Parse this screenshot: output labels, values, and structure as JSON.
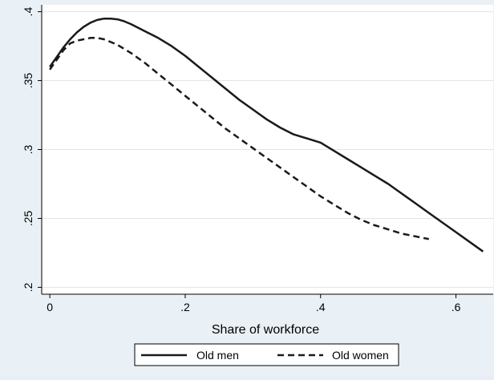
{
  "chart_data": {
    "type": "line",
    "title": "",
    "xlabel": "Share of workforce",
    "ylabel": "",
    "xlim": [
      -0.012,
      0.655
    ],
    "ylim": [
      0.195,
      0.405
    ],
    "xticks": [
      0,
      0.2,
      0.4,
      0.6
    ],
    "xtick_labels": [
      "0",
      ".2",
      ".4",
      ".6"
    ],
    "yticks": [
      0.2,
      0.25,
      0.3,
      0.35,
      0.4
    ],
    "ytick_labels": [
      ".2",
      ".25",
      ".3",
      ".35",
      ".4"
    ],
    "grid": "horizontal",
    "legend_position": "bottom",
    "colors": {
      "background": "#eaf1f6",
      "plot_background": "#ffffff",
      "line": "#1a1a1a"
    },
    "series": [
      {
        "name": "Old men",
        "style": "solid",
        "x": [
          0,
          0.01,
          0.02,
          0.03,
          0.04,
          0.05,
          0.06,
          0.07,
          0.08,
          0.09,
          0.1,
          0.11,
          0.12,
          0.14,
          0.16,
          0.18,
          0.2,
          0.22,
          0.24,
          0.26,
          0.28,
          0.3,
          0.32,
          0.34,
          0.36,
          0.38,
          0.4,
          0.42,
          0.44,
          0.46,
          0.48,
          0.5,
          0.52,
          0.54,
          0.56,
          0.58,
          0.6,
          0.62,
          0.64
        ],
        "y": [
          0.36,
          0.367,
          0.374,
          0.38,
          0.385,
          0.389,
          0.392,
          0.394,
          0.395,
          0.395,
          0.3945,
          0.393,
          0.391,
          0.386,
          0.381,
          0.375,
          0.368,
          0.36,
          0.352,
          0.344,
          0.336,
          0.329,
          0.322,
          0.316,
          0.311,
          0.308,
          0.305,
          0.299,
          0.293,
          0.287,
          0.281,
          0.275,
          0.268,
          0.261,
          0.254,
          0.247,
          0.24,
          0.233,
          0.226
        ]
      },
      {
        "name": "Old women",
        "style": "dashed",
        "x": [
          0,
          0.01,
          0.02,
          0.03,
          0.04,
          0.05,
          0.06,
          0.07,
          0.08,
          0.09,
          0.1,
          0.12,
          0.14,
          0.16,
          0.18,
          0.2,
          0.22,
          0.24,
          0.26,
          0.28,
          0.3,
          0.32,
          0.34,
          0.36,
          0.38,
          0.4,
          0.42,
          0.44,
          0.46,
          0.48,
          0.5,
          0.52,
          0.54,
          0.56
        ],
        "y": [
          0.358,
          0.365,
          0.372,
          0.377,
          0.379,
          0.38,
          0.381,
          0.381,
          0.38,
          0.378,
          0.376,
          0.37,
          0.363,
          0.355,
          0.347,
          0.339,
          0.331,
          0.323,
          0.315,
          0.308,
          0.301,
          0.294,
          0.287,
          0.28,
          0.273,
          0.266,
          0.26,
          0.254,
          0.249,
          0.245,
          0.242,
          0.239,
          0.237,
          0.235
        ]
      }
    ]
  }
}
